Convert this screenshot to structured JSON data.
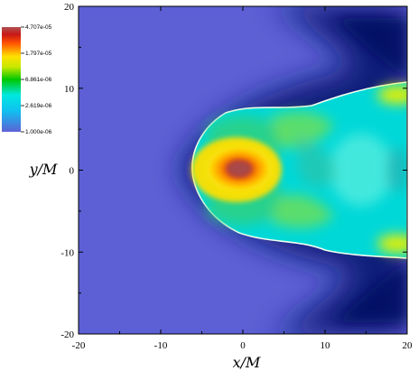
{
  "chart_data": {
    "type": "heatmap",
    "title": "",
    "xlabel": "x/M",
    "ylabel": "y/M",
    "xlim": [
      -20,
      20
    ],
    "ylim": [
      -20,
      20
    ],
    "x_ticks": [
      -20,
      -10,
      0,
      10,
      20
    ],
    "y_ticks": [
      -20,
      -10,
      0,
      10,
      20
    ],
    "x_tick_labels": [
      "-20",
      "-10",
      "0",
      "10",
      "20"
    ],
    "y_tick_labels": [
      "-20",
      "-10",
      "0",
      "10",
      "20"
    ],
    "colorbar": {
      "scale": "log",
      "range": [
        1e-06,
        4.707e-05
      ],
      "labels": [
        "4.707e-05",
        "1.797e-05",
        "6.861e-06",
        "2.619e-06",
        "1.000e-06"
      ],
      "colors": [
        "#5d62d6",
        "#00ffff",
        "#00c800",
        "#ffff00",
        "#ff0000",
        "#7a0000"
      ]
    },
    "features": {
      "background": "#5c60d4",
      "wake_shadow_color": "#0a1570",
      "shock_front_apex_x": -5.8,
      "shock_front_y_at_right_edge": [
        10.6,
        -10.6
      ],
      "peak_center": [
        0,
        0
      ],
      "peak_value": 4.707e-05
    }
  }
}
